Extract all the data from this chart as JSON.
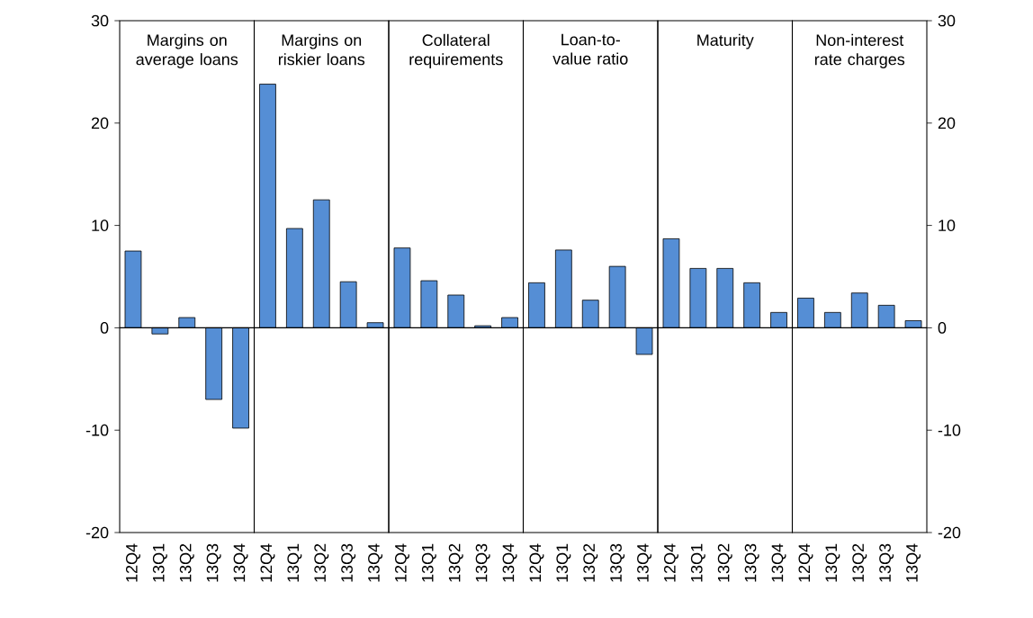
{
  "chart_data": [
    {
      "type": "bar",
      "title": "Margins on average loans",
      "categories": [
        "12Q4",
        "13Q1",
        "13Q2",
        "13Q3",
        "13Q4"
      ],
      "values": [
        7.5,
        -0.6,
        1.0,
        -7.0,
        -9.8
      ],
      "color": "#558ed5",
      "ylim": [
        -20,
        30
      ],
      "yticks": [
        -20,
        -10,
        0,
        10,
        20,
        30
      ]
    },
    {
      "type": "bar",
      "title": "Margins on riskier loans",
      "categories": [
        "12Q4",
        "13Q1",
        "13Q2",
        "13Q3",
        "13Q4"
      ],
      "values": [
        23.8,
        9.7,
        12.5,
        4.5,
        0.5
      ],
      "color": "#558ed5",
      "ylim": [
        -20,
        30
      ],
      "yticks": [
        -20,
        -10,
        0,
        10,
        20,
        30
      ],
      "tick_labels": "x"
    },
    {
      "type": "bar",
      "title": "Collateral requirements",
      "categories": [
        "12Q4",
        "13Q1",
        "13Q2",
        "13Q3",
        "13Q4"
      ],
      "values": [
        7.8,
        4.6,
        3.2,
        0.2,
        1.0
      ],
      "color": "#558ed5",
      "ylim": [
        -20,
        30
      ],
      "yticks": [
        -20,
        -10,
        0,
        10,
        20,
        30
      ],
      "tick_labels": "x"
    },
    {
      "type": "bar",
      "title": "Loan-to-value ratio",
      "categories": [
        "12Q4",
        "13Q1",
        "13Q2",
        "13Q3",
        "13Q4"
      ],
      "values": [
        4.4,
        7.6,
        2.7,
        6.0,
        -2.6
      ],
      "color": "#558ed5",
      "ylim": [
        -20,
        30
      ],
      "yticks": [
        -20,
        -10,
        0,
        10,
        20,
        30
      ],
      "tick_labels": "x"
    },
    {
      "type": "bar",
      "title": "Maturity",
      "categories": [
        "12Q4",
        "13Q1",
        "13Q2",
        "13Q3",
        "13Q4"
      ],
      "values": [
        8.7,
        5.8,
        5.8,
        4.4,
        1.5
      ],
      "color": "#558ed5",
      "ylim": [
        -20,
        30
      ],
      "yticks": [
        -20,
        -10,
        0,
        10,
        20,
        30
      ],
      "tick_labels": "x"
    },
    {
      "type": "bar",
      "title": "Non-interest rate charges",
      "categories": [
        "12Q4",
        "13Q1",
        "13Q2",
        "13Q3",
        "13Q4"
      ],
      "series": [
        {
          "values": [
            2.9,
            1.5,
            3.4,
            2.2,
            0.7
          ],
          "color": "#558ed5",
          "axis": "y2"
        }
      ],
      "y2lim": [
        -20,
        30
      ],
      "y2ticks": [
        -20,
        -10,
        0,
        10,
        20,
        30
      ]
    }
  ]
}
